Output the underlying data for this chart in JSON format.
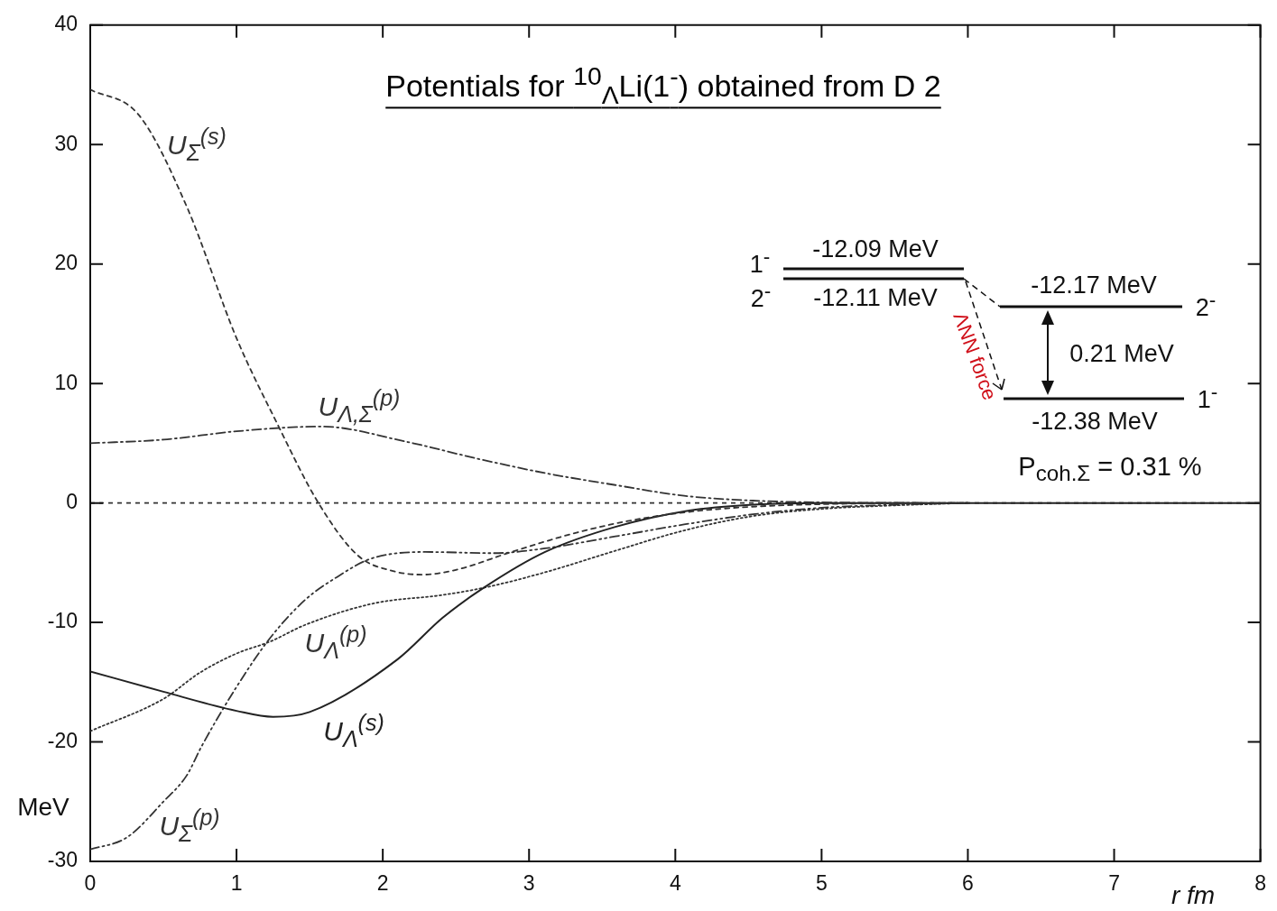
{
  "chart_data": {
    "type": "line",
    "title": "Potentials for $^{10}$$_{Λ}$Li(1$^{-}$) obtained from D 2",
    "xlabel": "r fm",
    "ylabel": "MeV",
    "xlim": [
      0,
      8
    ],
    "ylim": [
      -30,
      40
    ],
    "xticks": [
      0,
      1,
      2,
      3,
      4,
      5,
      6,
      7,
      8
    ],
    "yticks": [
      -30,
      -20,
      -10,
      0,
      10,
      20,
      30,
      40
    ],
    "legend": false,
    "grid": false,
    "marker": "none",
    "ref_lines": [
      {
        "axis": "y",
        "value": 0,
        "color": "#333333",
        "line_style": "dashed"
      }
    ],
    "annotations": [
      "1$^{-}$",
      "-12.09 MeV",
      "2$^{-}$",
      "-12.11 MeV",
      "-12.17 MeV",
      "2$^{-}$",
      "0.21 MeV",
      "1$^{-}$",
      "-12.38 MeV",
      "P$_{coh.Σ}$ = 0.31 %",
      "ΛNN force"
    ],
    "series": [
      {
        "name": "U$_{Σ}$$^{(s)}$",
        "color": "#333333",
        "line_style": "dashed",
        "x": [
          0,
          0.33,
          0.66,
          1.0,
          1.28,
          1.56,
          1.83,
          2.07,
          2.27,
          2.5,
          2.88,
          3.35,
          3.82,
          4.3,
          5,
          6
        ],
        "values": [
          34.6,
          32.5,
          24.8,
          13.8,
          6.6,
          0,
          -4.4,
          -5.7,
          -6.0,
          -5.6,
          -4.1,
          -2.4,
          -1.2,
          -0.5,
          -0.1,
          0
        ]
      },
      {
        "name": "U$_{Λ,Σ}$$^{(p)}$",
        "color": "#333333",
        "line_style": "dashdot",
        "x": [
          0,
          0.5,
          1.0,
          1.58,
          2.17,
          2.65,
          3.11,
          3.59,
          4.06,
          4.53,
          5,
          6
        ],
        "values": [
          5.0,
          5.3,
          6.0,
          6.4,
          5.1,
          3.7,
          2.5,
          1.5,
          0.6,
          0.2,
          0.05,
          0
        ]
      },
      {
        "name": "U$_{Λ}$$^{(s)}$",
        "color": "#222222",
        "line_style": "solid",
        "x": [
          0,
          0.5,
          1.0,
          1.25,
          1.5,
          2.1,
          2.41,
          2.69,
          3.11,
          3.59,
          4.06,
          4.53,
          5,
          6,
          7,
          8
        ],
        "values": [
          -14.1,
          -15.8,
          -17.4,
          -17.9,
          -17.5,
          -13.1,
          -9.6,
          -7.1,
          -4.1,
          -2.0,
          -0.7,
          -0.15,
          0,
          0,
          0,
          0
        ]
      },
      {
        "name": "U$_{Λ}$$^{(p)}$",
        "color": "#333333",
        "line_style": "dotted",
        "x": [
          0,
          0.5,
          0.75,
          1.0,
          1.23,
          1.47,
          1.94,
          2.41,
          2.69,
          3.11,
          3.59,
          4.06,
          4.53,
          5,
          5.5,
          6
        ],
        "values": [
          -19.1,
          -16.4,
          -14.2,
          -12.6,
          -11.6,
          -10.2,
          -8.4,
          -7.7,
          -7.1,
          -5.8,
          -4.0,
          -2.3,
          -1.1,
          -0.5,
          -0.2,
          0
        ]
      },
      {
        "name": "U$_{Σ}$$^{(p)}$",
        "color": "#333333",
        "line_style": "dashdotdot",
        "x": [
          0,
          0.25,
          0.5,
          0.66,
          0.76,
          1.0,
          1.23,
          1.47,
          1.7,
          1.91,
          2.29,
          2.76,
          3.11,
          3.59,
          4.06,
          4.53,
          5,
          5.5,
          6
        ],
        "values": [
          -29.0,
          -28.0,
          -25.0,
          -22.8,
          -20.4,
          -15.4,
          -11.3,
          -8.1,
          -6.1,
          -4.7,
          -4.1,
          -4.2,
          -3.8,
          -2.8,
          -1.8,
          -0.95,
          -0.4,
          -0.15,
          0
        ]
      }
    ]
  }
}
